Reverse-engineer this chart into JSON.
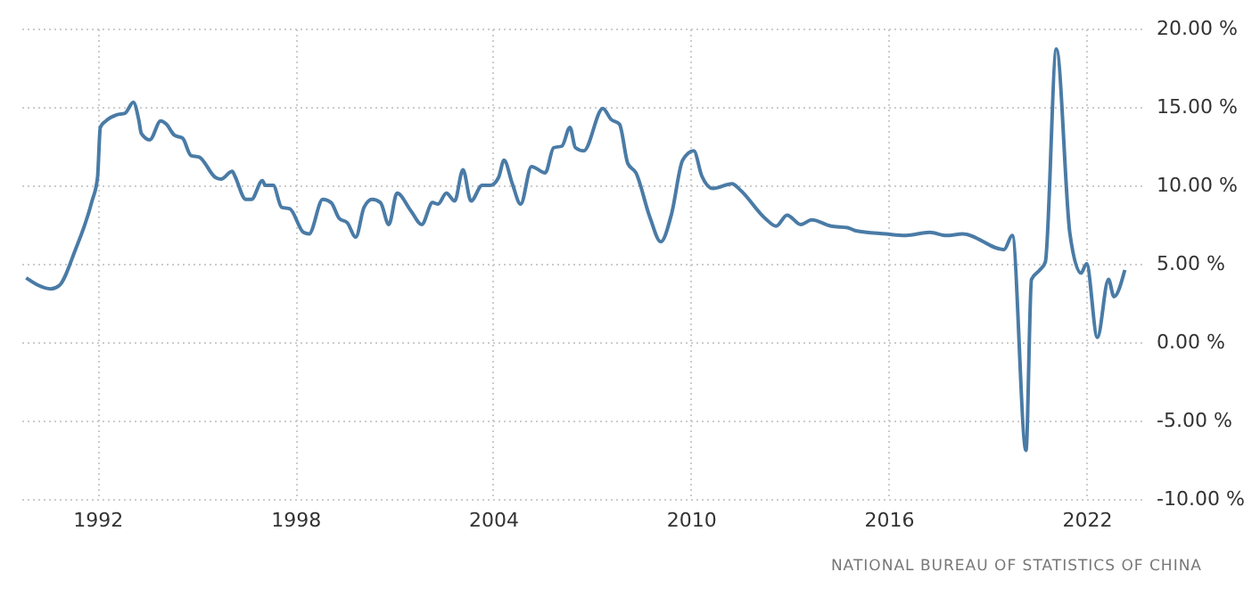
{
  "chart_data": {
    "type": "line",
    "x": [
      "1989-11",
      "1990-08",
      "1990-11",
      "1991-05",
      "1991-11",
      "1992-01",
      "1992-02",
      "1992-04",
      "1992-08",
      "1992-11",
      "1993-02",
      "1993-04",
      "1993-05",
      "1993-08",
      "1993-12",
      "1994-02",
      "1994-05",
      "1994-08",
      "1994-11",
      "1995-02",
      "1995-08",
      "1995-10",
      "1996-02",
      "1996-03",
      "1996-07",
      "1996-09",
      "1997-01",
      "1997-02",
      "1997-05",
      "1997-08",
      "1997-11",
      "1998-04",
      "1998-06",
      "1998-11",
      "1999-02",
      "1999-05",
      "1999-08",
      "1999-11",
      "2000-02",
      "2000-05",
      "2000-08",
      "2000-11",
      "2001-02",
      "2001-07",
      "2001-11",
      "2002-03",
      "2002-05",
      "2002-08",
      "2002-11",
      "2003-02",
      "2003-05",
      "2003-09",
      "2003-12",
      "2004-03",
      "2004-05",
      "2004-08",
      "2004-11",
      "2005-03",
      "2005-08",
      "2005-11",
      "2006-02",
      "2006-05",
      "2006-07",
      "2006-10",
      "2007-05",
      "2007-08",
      "2007-11",
      "2008-02",
      "2008-05",
      "2008-10",
      "2009-02",
      "2009-06",
      "2009-10",
      "2010-02",
      "2010-05",
      "2010-09",
      "2011-04",
      "2011-07",
      "2012-04",
      "2012-08",
      "2012-12",
      "2013-05",
      "2013-09",
      "2014-04",
      "2014-10",
      "2015-01",
      "2015-12",
      "2016-07",
      "2017-04",
      "2017-10",
      "2018-04",
      "2019-07",
      "2019-10",
      "2020-03",
      "2020-05",
      "2020-08",
      "2020-10",
      "2021-02",
      "2021-07",
      "2021-11",
      "2022-01",
      "2022-05",
      "2022-09",
      "2022-11",
      "2023-03"
    ],
    "series": [
      {
        "color": "#4a7ba6",
        "values": [
          4.1,
          3.4,
          3.6,
          5.9,
          9.0,
          10.5,
          13.7,
          14.1,
          14.5,
          14.6,
          15.3,
          14.2,
          13.3,
          12.9,
          14.1,
          13.9,
          13.2,
          13.0,
          11.9,
          11.8,
          10.5,
          10.4,
          10.9,
          10.6,
          9.1,
          9.1,
          10.3,
          10.0,
          10.0,
          8.6,
          8.5,
          7.0,
          6.9,
          9.1,
          8.9,
          7.9,
          7.6,
          6.7,
          8.6,
          9.1,
          8.9,
          7.5,
          9.5,
          8.4,
          7.5,
          8.9,
          8.8,
          9.5,
          9.0,
          11.0,
          9.0,
          10.0,
          10.0,
          10.5,
          11.6,
          10.1,
          8.8,
          11.2,
          10.8,
          12.4,
          12.5,
          13.7,
          12.4,
          12.2,
          14.9,
          14.2,
          13.9,
          11.4,
          10.8,
          8.0,
          6.4,
          8.2,
          11.6,
          12.2,
          10.6,
          9.8,
          10.1,
          9.7,
          7.9,
          7.4,
          8.1,
          7.5,
          7.8,
          7.4,
          7.3,
          7.1,
          6.9,
          6.8,
          7.0,
          6.8,
          6.9,
          5.9,
          6.8,
          -6.9,
          4.0,
          4.6,
          5.1,
          18.7,
          6.9,
          4.4,
          5.0,
          0.3,
          4.0,
          2.9,
          4.6
        ]
      }
    ],
    "xlim": [
      "1989-08",
      "2023-09"
    ],
    "xticks": [
      "1992",
      "1998",
      "2004",
      "2010",
      "2016",
      "2022"
    ],
    "ylim": [
      -10,
      20
    ],
    "yticks": [
      {
        "value": -10,
        "label": "-10.00 %"
      },
      {
        "value": -5,
        "label": "-5.00 %"
      },
      {
        "value": 0,
        "label": "0.00 %"
      },
      {
        "value": 5,
        "label": "5.00 %"
      },
      {
        "value": 10,
        "label": "10.00 %"
      },
      {
        "value": 15,
        "label": "15.00 %"
      },
      {
        "value": 20,
        "label": "20.00 %"
      }
    ],
    "grid": true,
    "marker": "none",
    "line_style": "solid",
    "annotations": [
      "NATIONAL BUREAU OF STATISTICS OF CHINA"
    ]
  }
}
